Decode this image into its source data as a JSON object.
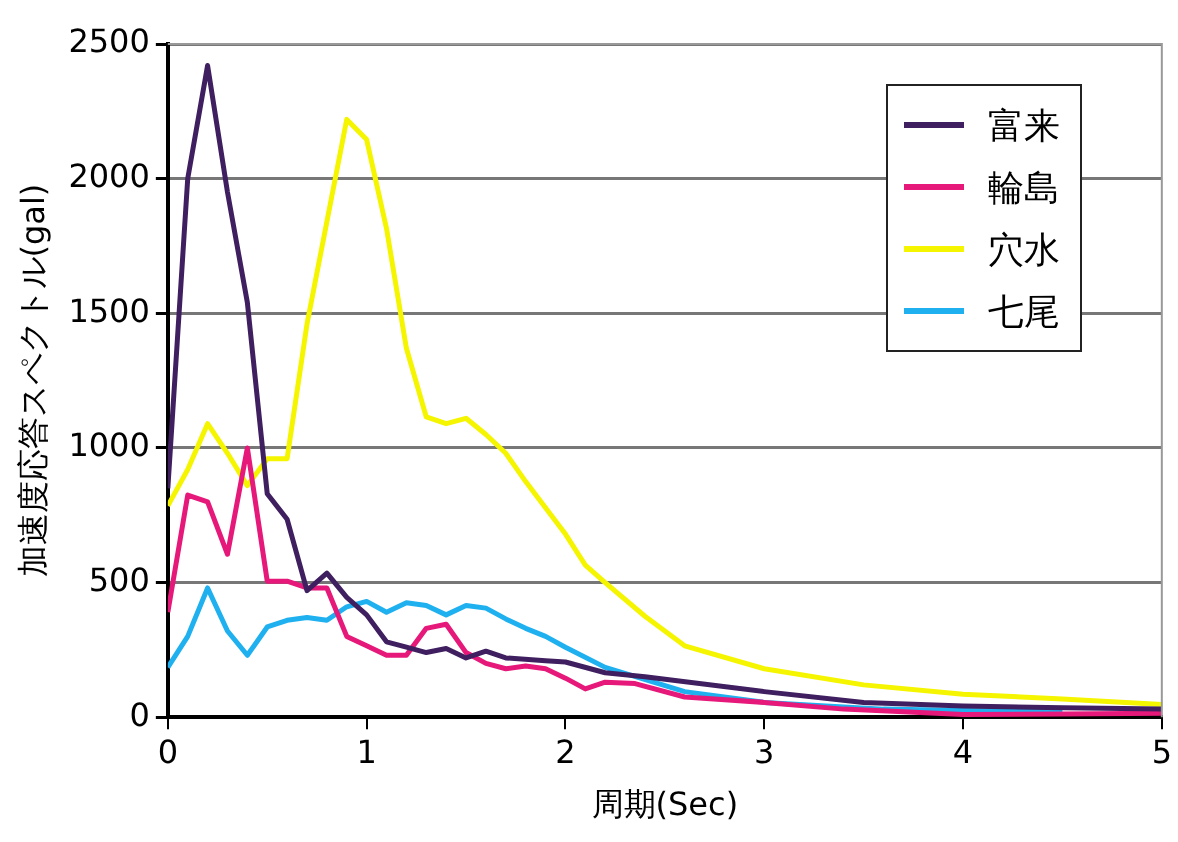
{
  "chart_data": {
    "type": "line",
    "xlabel": "周期(Sec)",
    "ylabel": "加速度応答スペクトル(gal)",
    "xlim": [
      0,
      5
    ],
    "xticks": [
      0,
      1,
      2,
      3,
      4,
      5
    ],
    "ylim": [
      0,
      2500
    ],
    "yticks": [
      0,
      500,
      1000,
      1500,
      2000,
      2500
    ],
    "grid": "y",
    "legend": "top right",
    "marker": "none",
    "line_style": "solid",
    "series": [
      {
        "name": "富来",
        "color": "#3f1f5f",
        "x": [
          0,
          0.1,
          0.2,
          0.3,
          0.4,
          0.5,
          0.6,
          0.7,
          0.8,
          0.9,
          1.0,
          1.1,
          1.2,
          1.3,
          1.4,
          1.5,
          1.6,
          1.7,
          1.9,
          2.0,
          2.2,
          2.4,
          3.0,
          3.5,
          4.0,
          4.5,
          5.0
        ],
        "values": [
          850,
          2000,
          2420,
          1950,
          1540,
          830,
          735,
          470,
          535,
          445,
          380,
          280,
          260,
          240,
          255,
          220,
          245,
          220,
          210,
          205,
          165,
          150,
          95,
          55,
          42,
          35,
          30
        ]
      },
      {
        "name": "輪島",
        "color": "#e6197a",
        "x": [
          0,
          0.1,
          0.2,
          0.3,
          0.4,
          0.5,
          0.6,
          0.7,
          0.8,
          0.9,
          1.0,
          1.1,
          1.2,
          1.3,
          1.4,
          1.5,
          1.6,
          1.7,
          1.8,
          1.9,
          2.0,
          2.1,
          2.2,
          2.35,
          2.6,
          3.0,
          3.4,
          4.0,
          4.5,
          5.0
        ],
        "values": [
          390,
          825,
          800,
          605,
          1000,
          505,
          505,
          480,
          480,
          300,
          265,
          230,
          230,
          330,
          345,
          240,
          200,
          180,
          190,
          180,
          145,
          105,
          130,
          125,
          75,
          55,
          30,
          10,
          12,
          15
        ]
      },
      {
        "name": "穴水",
        "color": "#f5f500",
        "x": [
          0,
          0.1,
          0.2,
          0.3,
          0.4,
          0.5,
          0.6,
          0.7,
          0.8,
          0.9,
          1.0,
          1.1,
          1.2,
          1.3,
          1.4,
          1.5,
          1.6,
          1.7,
          1.8,
          2.0,
          2.1,
          2.2,
          2.4,
          2.6,
          3.0,
          3.5,
          4.0,
          4.5,
          5.0
        ],
        "values": [
          785,
          920,
          1090,
          980,
          860,
          960,
          960,
          1460,
          1840,
          2220,
          2145,
          1815,
          1370,
          1115,
          1090,
          1110,
          1050,
          980,
          875,
          680,
          565,
          500,
          375,
          265,
          180,
          120,
          85,
          68,
          47
        ]
      },
      {
        "name": "七尾",
        "color": "#1fb0f0",
        "x": [
          0,
          0.1,
          0.2,
          0.3,
          0.4,
          0.5,
          0.6,
          0.7,
          0.8,
          0.9,
          1.0,
          1.1,
          1.2,
          1.3,
          1.4,
          1.5,
          1.6,
          1.7,
          1.8,
          1.9,
          2.0,
          2.2,
          2.6,
          3.0,
          3.6,
          4.0,
          4.5
        ],
        "values": [
          185,
          300,
          480,
          320,
          230,
          335,
          360,
          370,
          360,
          410,
          430,
          390,
          425,
          415,
          380,
          415,
          405,
          365,
          330,
          300,
          260,
          185,
          95,
          55,
          30,
          25,
          20
        ]
      }
    ]
  }
}
